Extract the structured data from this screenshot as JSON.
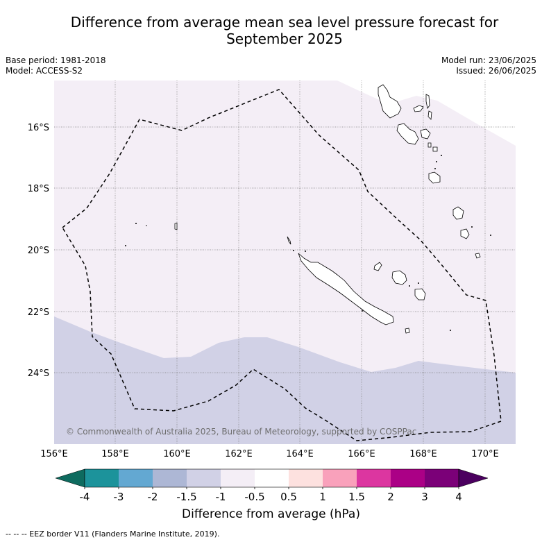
{
  "title": {
    "line1": "Difference from average mean sea level pressure forecast for",
    "line2": "September 2025"
  },
  "meta": {
    "base_period": "Base period: 1981-2018",
    "model": "Model: ACCESS-S2",
    "model_run": "Model run: 23/06/2025",
    "issued": "Issued: 26/06/2025"
  },
  "map": {
    "lat_labels": [
      "16°S",
      "18°S",
      "20°S",
      "22°S",
      "24°S"
    ],
    "lon_labels": [
      "156°E",
      "158°E",
      "160°E",
      "162°E",
      "164°E",
      "166°E",
      "168°E",
      "170°E"
    ],
    "copyright": "© Commonwealth of Australia 2025, Bureau of Meteorology, supported by COSPPac",
    "fill_colors": {
      "light": "#f4eef6",
      "blue": "#d1d1e6"
    }
  },
  "colorbar": {
    "ticks": [
      "-4",
      "-3",
      "-2",
      "-1.5",
      "-1",
      "-0.5",
      "0.5",
      "1",
      "1.5",
      "2",
      "3",
      "4"
    ],
    "colors": [
      "#1c939b",
      "#63a8d2",
      "#adb7d5",
      "#d1d1e6",
      "#f4eef6",
      "#ffffff",
      "#fde1df",
      "#f9a1bb",
      "#dc36a0",
      "#ab0086",
      "#7b0078"
    ],
    "under_color": "#0e6b5f",
    "over_color": "#4b005f",
    "label": "Difference from average (hPa)"
  },
  "footnote": "-- -- -- EEZ border V11 (Flanders Marine Institute, 2019)."
}
